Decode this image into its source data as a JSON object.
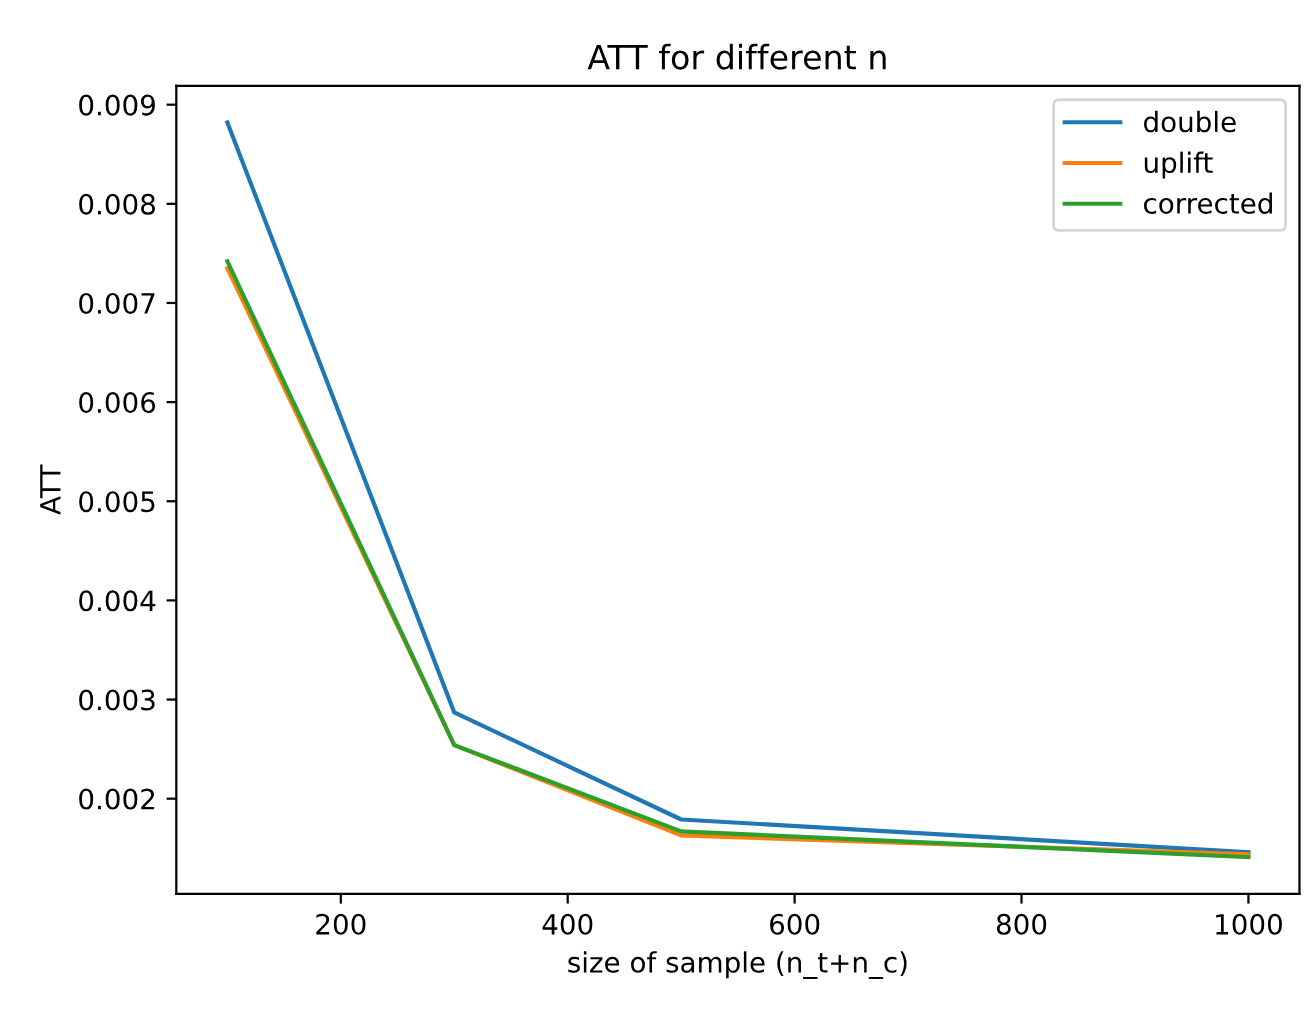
{
  "chart_data": {
    "type": "line",
    "title": "ATT for different n",
    "xlabel": "size of sample (n_t+n_c)",
    "ylabel": "ATT",
    "x": [
      100,
      300,
      500,
      1000
    ],
    "series": [
      {
        "name": "double",
        "color": "#1f77b4",
        "values": [
          0.00882,
          0.00287,
          0.00179,
          0.00146
        ]
      },
      {
        "name": "uplift",
        "color": "#ff7f0e",
        "values": [
          0.00735,
          0.00254,
          0.00163,
          0.00144
        ]
      },
      {
        "name": "corrected",
        "color": "#2ca02c",
        "values": [
          0.00742,
          0.00254,
          0.00167,
          0.00141
        ]
      }
    ],
    "xlim": [
      55,
      1045
    ],
    "ylim": [
      0.00104,
      0.00919
    ],
    "xticks": [
      200,
      400,
      600,
      800,
      1000
    ],
    "yticks": [
      0.002,
      0.003,
      0.004,
      0.005,
      0.006,
      0.007,
      0.008,
      0.009
    ],
    "grid": false,
    "legend": "top right",
    "marker": "none",
    "line_style": "solid"
  }
}
